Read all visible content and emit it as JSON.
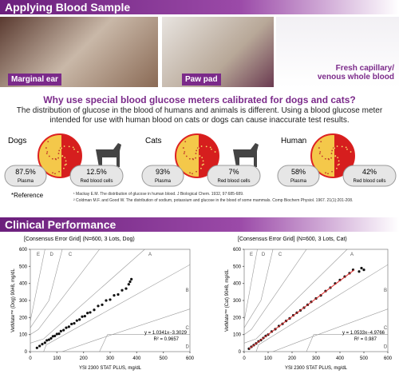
{
  "header": {
    "title": "Applying Blood Sample"
  },
  "photos": [
    {
      "label": "Marginal ear"
    },
    {
      "label": "Paw pad"
    },
    {
      "label": [
        "Fresh capillary/",
        "venous whole blood"
      ]
    }
  ],
  "section": {
    "title": "Why use special blood glucose meters calibrated for dogs and cats?",
    "body": "The distribution of glucose in the blood of humans and animals is different. Using a blood glucose meter intended for use with human blood on cats or dogs can cause inaccurate test results."
  },
  "comparisons": [
    {
      "name": "Dogs",
      "plasma": "87.5%",
      "plasma_caption": "Plasma",
      "rbc": "12.5%",
      "rbc_caption": "Red blood cells"
    },
    {
      "name": "Cats",
      "plasma": "93%",
      "plasma_caption": "Plasma",
      "rbc": "7%",
      "rbc_caption": "Red blood cells"
    },
    {
      "name": "Human",
      "plasma": "58%",
      "plasma_caption": "Plasma",
      "rbc": "42%",
      "rbc_caption": "Red blood cells"
    }
  ],
  "reference": {
    "label": "*Reference",
    "items": [
      "¹ Mackay E.M. The distribution of glucose in human blood. J Biological Chem. 1932, 97:685-689.",
      "² Coldman M.F. and Good W. The distribution of sodium, potassium and glucose in the blood of some mammals. Comp Biochem Physiol. 1967. 21(1):201-208."
    ]
  },
  "clinical": {
    "title": "Clinical Performance"
  },
  "chart_data": [
    {
      "type": "scatter",
      "title": "[Consensus Error Grid] (N=600, 3 Lots, Dog)",
      "x_label": "YSI 2300 STAT PLUS, mg/dL",
      "y_label": "VetMate™ (Dog) 90#8, mg/dL",
      "xlim": [
        0,
        600
      ],
      "ylim": [
        0,
        600
      ],
      "xticks": [
        0,
        100,
        200,
        300,
        400,
        500,
        600
      ],
      "yticks": [
        0,
        100,
        200,
        300,
        400,
        500,
        600
      ],
      "zone_labels": [
        "E",
        "D",
        "C",
        "A",
        "B",
        "C",
        "D"
      ],
      "equation": "y = 1.0341x−3.3029",
      "r2": "R² = 0.9657",
      "color": "#111111",
      "x": [
        25,
        35,
        45,
        55,
        62,
        70,
        78,
        85,
        92,
        100,
        108,
        115,
        125,
        135,
        145,
        155,
        165,
        175,
        185,
        195,
        205,
        215,
        225,
        240,
        255,
        270,
        285,
        300,
        315,
        330,
        345,
        360,
        370,
        375,
        380
      ],
      "values": [
        22,
        33,
        44,
        52,
        66,
        70,
        78,
        90,
        92,
        103,
        105,
        120,
        126,
        140,
        146,
        162,
        166,
        182,
        188,
        205,
        208,
        226,
        230,
        245,
        268,
        275,
        300,
        305,
        330,
        335,
        360,
        370,
        395,
        410,
        425
      ]
    },
    {
      "type": "scatter",
      "title": "[Consensus Error Grid] (N=600, 3 Lots, Cat)",
      "x_label": "YSI 2300 STAT PLUS, mg/dL",
      "y_label": "VetMate™ (Cat) 90#8, mg/dL",
      "xlim": [
        0,
        600
      ],
      "ylim": [
        0,
        600
      ],
      "xticks": [
        0,
        100,
        200,
        300,
        400,
        500,
        600
      ],
      "yticks": [
        0,
        100,
        200,
        300,
        400,
        500,
        600
      ],
      "zone_labels": [
        "E",
        "D",
        "C",
        "A",
        "B",
        "C",
        "D"
      ],
      "equation": "y = 1.0533x−4.9766",
      "r2": "R² = 0.987",
      "color": "#111111",
      "fit": {
        "slope": 1.0533,
        "intercept": -4.9766,
        "x": [
          20,
          460
        ],
        "color": "#e03030"
      },
      "x": [
        20,
        30,
        40,
        50,
        60,
        70,
        80,
        90,
        100,
        115,
        130,
        145,
        160,
        175,
        190,
        205,
        220,
        235,
        250,
        265,
        280,
        300,
        320,
        340,
        360,
        380,
        400,
        420,
        440,
        455,
        480,
        490,
        500
      ],
      "values": [
        17,
        28,
        38,
        48,
        60,
        68,
        80,
        92,
        100,
        118,
        132,
        150,
        163,
        180,
        195,
        213,
        228,
        242,
        258,
        275,
        292,
        312,
        330,
        355,
        375,
        400,
        420,
        440,
        460,
        480,
        470,
        490,
        480
      ]
    }
  ]
}
